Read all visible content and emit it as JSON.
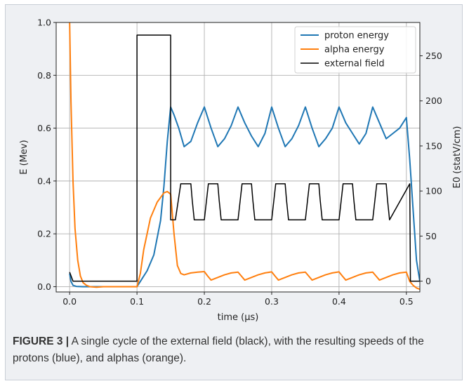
{
  "chart_data": {
    "type": "line",
    "xlabel": "time (μs)",
    "ylabel_left": "E (Mev)",
    "ylabel_right": "E0 (statV/cm)",
    "xlim": [
      -0.02,
      0.52
    ],
    "ylim_left": [
      -0.02,
      1.0
    ],
    "ylim_right": [
      -12,
      287
    ],
    "x_ticks": [
      0.0,
      0.1,
      0.2,
      0.3,
      0.4,
      0.5
    ],
    "x_tick_labels": [
      "0.0",
      "0.1",
      "0.2",
      "0.3",
      "0.4",
      "0.5"
    ],
    "y_left_ticks": [
      0.0,
      0.2,
      0.4,
      0.6,
      0.8,
      1.0
    ],
    "y_left_tick_labels": [
      "0.0",
      "0.2",
      "0.4",
      "0.6",
      "0.8",
      "1.0"
    ],
    "y_right_ticks": [
      0,
      50,
      100,
      150,
      200,
      250
    ],
    "y_right_tick_labels": [
      "0",
      "50",
      "100",
      "150",
      "200",
      "250"
    ],
    "grid": true,
    "legend_position": "top-right",
    "series": [
      {
        "name": "proton energy",
        "color": "#1f77b4",
        "axis": "left",
        "x": [
          0.0,
          0.002,
          0.005,
          0.01,
          0.02,
          0.05,
          0.1,
          0.105,
          0.115,
          0.125,
          0.135,
          0.14,
          0.145,
          0.15,
          0.155,
          0.162,
          0.17,
          0.18,
          0.19,
          0.2,
          0.21,
          0.22,
          0.23,
          0.24,
          0.25,
          0.26,
          0.27,
          0.28,
          0.29,
          0.3,
          0.31,
          0.32,
          0.33,
          0.34,
          0.35,
          0.36,
          0.37,
          0.38,
          0.39,
          0.4,
          0.41,
          0.42,
          0.43,
          0.44,
          0.45,
          0.46,
          0.47,
          0.48,
          0.49,
          0.5,
          0.505,
          0.515,
          0.52
        ],
        "y": [
          0.05,
          0.02,
          0.005,
          0.001,
          0.0,
          0.0,
          0.0,
          0.02,
          0.06,
          0.12,
          0.25,
          0.38,
          0.55,
          0.68,
          0.65,
          0.6,
          0.53,
          0.55,
          0.62,
          0.68,
          0.6,
          0.53,
          0.56,
          0.61,
          0.68,
          0.62,
          0.57,
          0.53,
          0.58,
          0.68,
          0.6,
          0.53,
          0.56,
          0.61,
          0.68,
          0.6,
          0.53,
          0.56,
          0.6,
          0.68,
          0.62,
          0.58,
          0.54,
          0.58,
          0.68,
          0.62,
          0.56,
          0.58,
          0.6,
          0.64,
          0.48,
          0.1,
          0.02
        ]
      },
      {
        "name": "alpha energy",
        "color": "#ff7f0e",
        "axis": "left",
        "x": [
          0.0,
          0.002,
          0.005,
          0.008,
          0.012,
          0.016,
          0.02,
          0.025,
          0.03,
          0.04,
          0.05,
          0.1,
          0.105,
          0.11,
          0.12,
          0.13,
          0.14,
          0.145,
          0.15,
          0.155,
          0.16,
          0.165,
          0.17,
          0.18,
          0.19,
          0.2,
          0.205,
          0.21,
          0.22,
          0.23,
          0.24,
          0.25,
          0.255,
          0.26,
          0.27,
          0.28,
          0.29,
          0.3,
          0.305,
          0.31,
          0.32,
          0.33,
          0.34,
          0.35,
          0.355,
          0.36,
          0.37,
          0.38,
          0.39,
          0.4,
          0.405,
          0.41,
          0.42,
          0.43,
          0.44,
          0.45,
          0.455,
          0.46,
          0.47,
          0.48,
          0.49,
          0.5,
          0.505,
          0.51,
          0.515,
          0.52
        ],
        "y": [
          1.0,
          0.7,
          0.4,
          0.22,
          0.1,
          0.04,
          0.015,
          0.005,
          0.0,
          -0.002,
          0.0,
          0.0,
          0.05,
          0.14,
          0.26,
          0.32,
          0.355,
          0.36,
          0.35,
          0.2,
          0.08,
          0.05,
          0.045,
          0.052,
          0.055,
          0.057,
          0.04,
          0.025,
          0.035,
          0.045,
          0.052,
          0.055,
          0.04,
          0.025,
          0.035,
          0.045,
          0.052,
          0.056,
          0.04,
          0.025,
          0.035,
          0.045,
          0.052,
          0.055,
          0.04,
          0.025,
          0.035,
          0.045,
          0.052,
          0.056,
          0.04,
          0.025,
          0.035,
          0.045,
          0.052,
          0.055,
          0.04,
          0.025,
          0.035,
          0.045,
          0.052,
          0.055,
          0.02,
          0.005,
          -0.005,
          -0.01
        ]
      },
      {
        "name": "external field",
        "color": "#000000",
        "axis": "right",
        "x": [
          0.0,
          0.005,
          0.1,
          0.1,
          0.15,
          0.15,
          0.157,
          0.165,
          0.17,
          0.18,
          0.182,
          0.185,
          0.2,
          0.203,
          0.206,
          0.22,
          0.222,
          0.225,
          0.25,
          0.253,
          0.256,
          0.27,
          0.272,
          0.275,
          0.3,
          0.303,
          0.306,
          0.32,
          0.322,
          0.325,
          0.35,
          0.353,
          0.356,
          0.37,
          0.372,
          0.375,
          0.4,
          0.403,
          0.406,
          0.42,
          0.422,
          0.425,
          0.45,
          0.453,
          0.456,
          0.47,
          0.472,
          0.475,
          0.505,
          0.506,
          0.52
        ],
        "y": [
          10,
          0,
          0,
          273,
          273,
          68,
          68,
          108,
          108,
          108,
          90,
          68,
          68,
          88,
          108,
          108,
          90,
          68,
          68,
          88,
          108,
          108,
          90,
          68,
          68,
          88,
          108,
          108,
          90,
          68,
          68,
          88,
          108,
          108,
          90,
          68,
          68,
          88,
          108,
          108,
          90,
          68,
          68,
          88,
          108,
          108,
          90,
          68,
          108,
          0,
          0
        ]
      }
    ]
  },
  "caption": {
    "label": "FIGURE 3 |",
    "text": "A single cycle of the external field (black), with the resulting speeds of the protons (blue), and alphas (orange)."
  }
}
